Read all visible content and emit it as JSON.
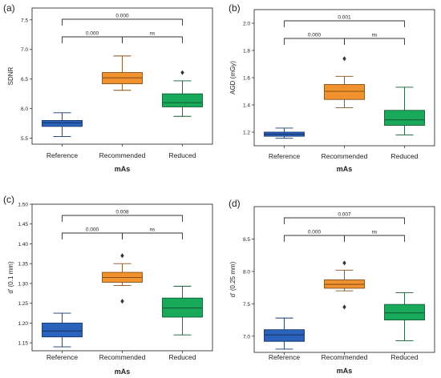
{
  "figure": {
    "colors": {
      "Reference": "#2a63bd",
      "Recommended": "#f0922e",
      "Reduced": "#19a95b",
      "frame": "#333333",
      "text": "#222222"
    }
  },
  "chart_data": [
    {
      "type": "box",
      "panel_label": "(a)",
      "xlabel": "mAs",
      "ylabel": "SDNR",
      "categories": [
        "Reference",
        "Recommended",
        "Reduced"
      ],
      "ylim": [
        5.4,
        7.7
      ],
      "yticks": [
        "5.5",
        "6.0",
        "6.5",
        "7.0",
        "7.5"
      ],
      "boxes": [
        {
          "name": "Reference",
          "whisker_low": 5.53,
          "q1": 5.7,
          "median": 5.76,
          "q3": 5.8,
          "whisker_high": 5.93,
          "outliers": []
        },
        {
          "name": "Recommended",
          "whisker_low": 6.31,
          "q1": 6.42,
          "median": 6.52,
          "q3": 6.61,
          "whisker_high": 6.89,
          "outliers": []
        },
        {
          "name": "Reduced",
          "whisker_low": 5.87,
          "q1": 6.03,
          "median": 6.1,
          "q3": 6.25,
          "whisker_high": 6.47,
          "outliers": [
            6.61
          ]
        }
      ],
      "brackets": [
        {
          "from": "Reference",
          "to": "Reduced",
          "label": "0.000",
          "level": 1
        },
        {
          "from": "Reference",
          "to": "Recommended",
          "label": "0.000",
          "level": 0
        },
        {
          "from": "Recommended",
          "to": "Reduced",
          "label": "ns",
          "level": 0
        }
      ]
    },
    {
      "type": "box",
      "panel_label": "(b)",
      "xlabel": "mAs",
      "ylabel": "AGD (mGy)",
      "categories": [
        "Reference",
        "Recommended",
        "Reduced"
      ],
      "ylim": [
        1.1,
        2.1
      ],
      "yticks": [
        "1.2",
        "1.4",
        "1.6",
        "1.8",
        "2.0"
      ],
      "boxes": [
        {
          "name": "Reference",
          "whisker_low": 1.155,
          "q1": 1.17,
          "median": 1.185,
          "q3": 1.2,
          "whisker_high": 1.23,
          "outliers": []
        },
        {
          "name": "Recommended",
          "whisker_low": 1.38,
          "q1": 1.44,
          "median": 1.5,
          "q3": 1.55,
          "whisker_high": 1.61,
          "outliers": [
            1.74
          ]
        },
        {
          "name": "Reduced",
          "whisker_low": 1.18,
          "q1": 1.25,
          "median": 1.29,
          "q3": 1.36,
          "whisker_high": 1.53,
          "outliers": []
        }
      ],
      "brackets": [
        {
          "from": "Reference",
          "to": "Reduced",
          "label": "0.001",
          "level": 1
        },
        {
          "from": "Reference",
          "to": "Recommended",
          "label": "0.000",
          "level": 0
        },
        {
          "from": "Recommended",
          "to": "Reduced",
          "label": "ns",
          "level": 0
        }
      ]
    },
    {
      "type": "box",
      "panel_label": "(c)",
      "xlabel": "mAs",
      "ylabel": "d' (0.1 mm)",
      "categories": [
        "Reference",
        "Recommended",
        "Reduced"
      ],
      "ylim": [
        1.13,
        1.5
      ],
      "yticks": [
        "1.15",
        "1.20",
        "1.25",
        "1.30",
        "1.35",
        "1.40",
        "1.45",
        "1.50"
      ],
      "boxes": [
        {
          "name": "Reference",
          "whisker_low": 1.14,
          "q1": 1.165,
          "median": 1.18,
          "q3": 1.2,
          "whisker_high": 1.225,
          "outliers": []
        },
        {
          "name": "Recommended",
          "whisker_low": 1.295,
          "q1": 1.303,
          "median": 1.315,
          "q3": 1.328,
          "whisker_high": 1.35,
          "outliers": [
            1.255,
            1.37
          ]
        },
        {
          "name": "Reduced",
          "whisker_low": 1.17,
          "q1": 1.215,
          "median": 1.238,
          "q3": 1.263,
          "whisker_high": 1.293,
          "outliers": []
        }
      ],
      "brackets": [
        {
          "from": "Reference",
          "to": "Reduced",
          "label": "0.008",
          "level": 1
        },
        {
          "from": "Reference",
          "to": "Recommended",
          "label": "0.000",
          "level": 0
        },
        {
          "from": "Recommended",
          "to": "Reduced",
          "label": "ns",
          "level": 0
        }
      ]
    },
    {
      "type": "box",
      "panel_label": "(d)",
      "xlabel": "mAs",
      "ylabel": "d' (0.25 mm)",
      "categories": [
        "Reference",
        "Recommended",
        "Reduced"
      ],
      "ylim": [
        6.75,
        9.0
      ],
      "yticks": [
        "7.0",
        "7.5",
        "8.0",
        "8.5"
      ],
      "boxes": [
        {
          "name": "Reference",
          "whisker_low": 6.8,
          "q1": 6.92,
          "median": 7.02,
          "q3": 7.1,
          "whisker_high": 7.28,
          "outliers": []
        },
        {
          "name": "Recommended",
          "whisker_low": 7.7,
          "q1": 7.74,
          "median": 7.8,
          "q3": 7.87,
          "whisker_high": 8.02,
          "outliers": [
            7.45,
            8.13
          ]
        },
        {
          "name": "Reduced",
          "whisker_low": 6.93,
          "q1": 7.25,
          "median": 7.36,
          "q3": 7.49,
          "whisker_high": 7.67,
          "outliers": []
        }
      ],
      "brackets": [
        {
          "from": "Reference",
          "to": "Reduced",
          "label": "0.007",
          "level": 1
        },
        {
          "from": "Reference",
          "to": "Recommended",
          "label": "0.000",
          "level": 0
        },
        {
          "from": "Recommended",
          "to": "Reduced",
          "label": "ns",
          "level": 0
        }
      ]
    }
  ]
}
